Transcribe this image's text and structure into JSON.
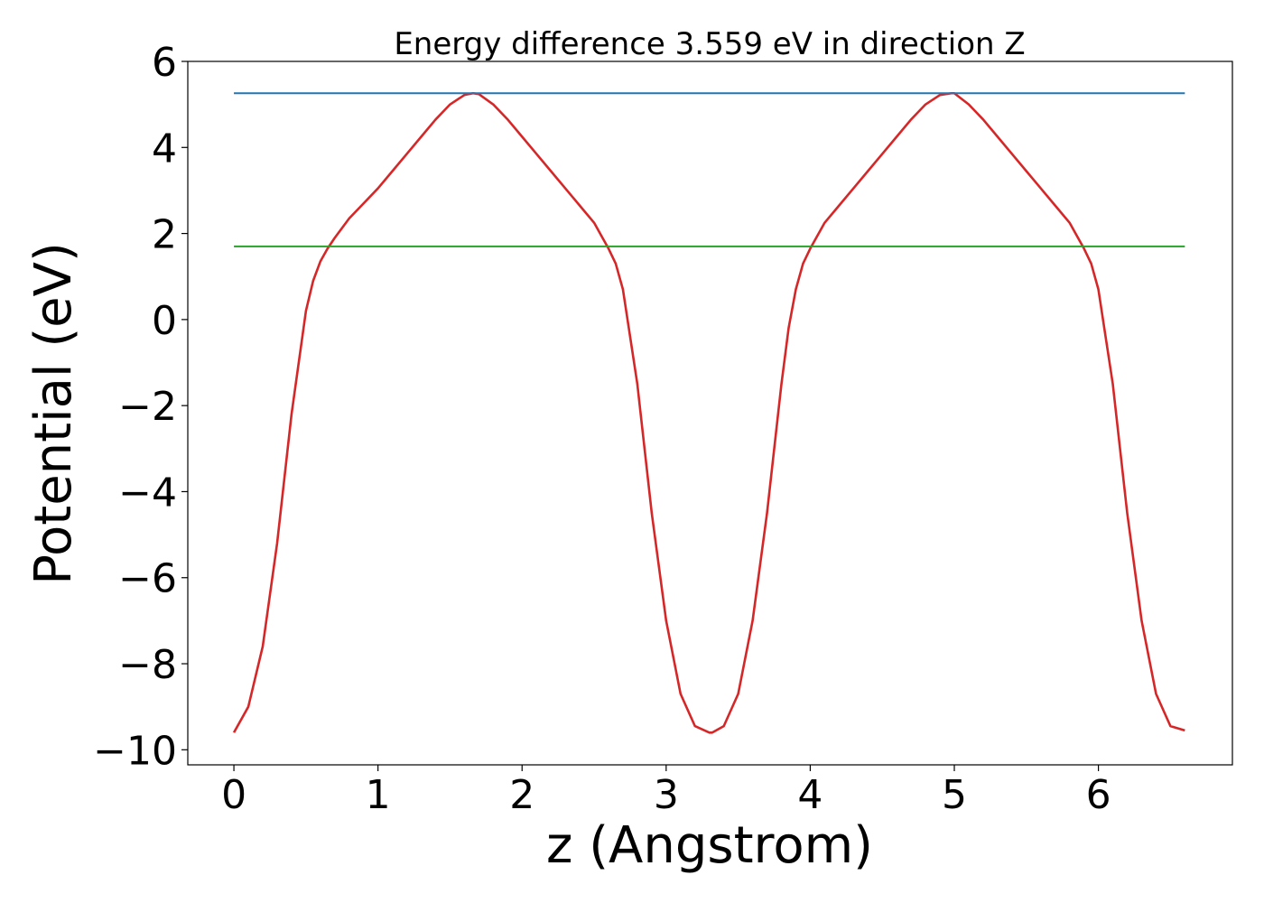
{
  "chart_data": {
    "type": "line",
    "title": "Energy difference 3.559 eV in direction Z",
    "xlabel": "z (Angstrom)",
    "ylabel": "Potential (eV)",
    "xlim": [
      -0.32,
      6.93
    ],
    "ylim": [
      -10.35,
      6.0
    ],
    "xticks": [
      0,
      1,
      2,
      3,
      4,
      5,
      6
    ],
    "yticks": [
      -10,
      -8,
      -6,
      -4,
      -2,
      0,
      2,
      4,
      6
    ],
    "xtick_labels": [
      "0",
      "1",
      "2",
      "3",
      "4",
      "5",
      "6"
    ],
    "ytick_labels": [
      "−10",
      "−8",
      "−6",
      "−4",
      "−2",
      "0",
      "2",
      "4",
      "6"
    ],
    "grid": false,
    "legend": "none",
    "series": [
      {
        "color": "#d62728",
        "x": [
          0,
          0.1,
          0.2,
          0.3,
          0.4,
          0.5,
          0.55,
          0.6,
          0.65,
          0.7,
          0.8,
          0.9,
          1.0,
          1.1,
          1.2,
          1.3,
          1.4,
          1.5,
          1.6,
          1.66,
          1.7,
          1.8,
          1.9,
          2.0,
          2.1,
          2.2,
          2.3,
          2.4,
          2.5,
          2.55,
          2.6,
          2.65,
          2.7,
          2.8,
          2.9,
          3.0,
          3.1,
          3.2,
          3.3,
          3.32,
          3.4,
          3.5,
          3.6,
          3.7,
          3.8,
          3.85,
          3.9,
          3.95,
          4.0,
          4.1,
          4.2,
          4.3,
          4.4,
          4.5,
          4.6,
          4.7,
          4.8,
          4.9,
          4.98,
          5.0,
          5.1,
          5.2,
          5.3,
          5.4,
          5.5,
          5.6,
          5.7,
          5.8,
          5.85,
          5.9,
          5.95,
          6.0,
          6.1,
          6.2,
          6.3,
          6.4,
          6.5,
          6.6
        ],
        "y": [
          -9.6,
          -9.0,
          -7.6,
          -5.2,
          -2.2,
          0.2,
          0.9,
          1.35,
          1.65,
          1.9,
          2.35,
          2.7,
          3.05,
          3.45,
          3.85,
          4.25,
          4.65,
          5.0,
          5.22,
          5.26,
          5.24,
          5.0,
          4.65,
          4.25,
          3.85,
          3.45,
          3.05,
          2.65,
          2.25,
          1.95,
          1.65,
          1.3,
          0.7,
          -1.5,
          -4.5,
          -7.0,
          -8.7,
          -9.45,
          -9.6,
          -9.6,
          -9.45,
          -8.7,
          -7.0,
          -4.5,
          -1.5,
          -0.2,
          0.7,
          1.3,
          1.65,
          2.25,
          2.65,
          3.05,
          3.45,
          3.85,
          4.25,
          4.65,
          5.0,
          5.22,
          5.26,
          5.26,
          5.0,
          4.65,
          4.25,
          3.85,
          3.45,
          3.05,
          2.65,
          2.25,
          1.95,
          1.65,
          1.3,
          0.7,
          -1.5,
          -4.5,
          -7.0,
          -8.7,
          -9.45,
          -9.55
        ]
      },
      {
        "color": "#1f77b4",
        "x": [
          0,
          6.6
        ],
        "y": [
          5.26,
          5.26
        ]
      },
      {
        "color": "#2ca02c",
        "x": [
          0,
          6.6
        ],
        "y": [
          1.7,
          1.7
        ]
      }
    ]
  }
}
